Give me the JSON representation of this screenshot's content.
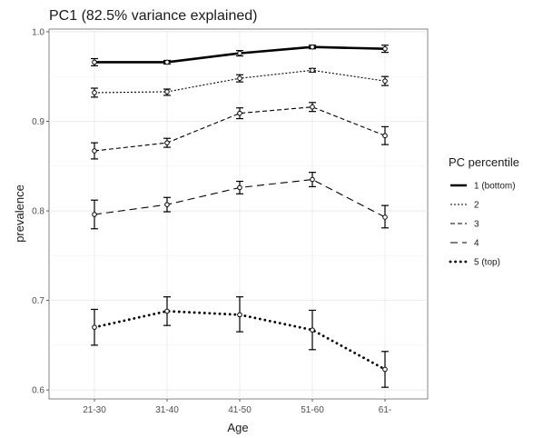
{
  "chart_data": {
    "type": "line",
    "title": "PC1 (82.5% variance explained)",
    "xlabel": "Age",
    "ylabel": "prevalence",
    "categories": [
      "21-30",
      "31-40",
      "41-50",
      "51-60",
      "61-"
    ],
    "ylim": [
      0.59,
      1.003
    ],
    "yticks": [
      0.6,
      0.7,
      0.8,
      0.9,
      1.0
    ],
    "ytick_labels": [
      "0.6",
      "0.7",
      "0.8",
      "0.9",
      "1.0"
    ],
    "grid": true,
    "legend": {
      "title": "PC percentile",
      "placement": "right"
    },
    "series": [
      {
        "name": "1 (bottom)",
        "linetype": "solid",
        "values": [
          0.966,
          0.966,
          0.976,
          0.983,
          0.981
        ],
        "lower": [
          0.962,
          0.964,
          0.973,
          0.981,
          0.977
        ],
        "upper": [
          0.97,
          0.968,
          0.979,
          0.985,
          0.985
        ]
      },
      {
        "name": "2",
        "linetype": "dotted",
        "values": [
          0.932,
          0.933,
          0.948,
          0.957,
          0.945
        ],
        "lower": [
          0.927,
          0.929,
          0.944,
          0.955,
          0.94
        ],
        "upper": [
          0.937,
          0.936,
          0.952,
          0.959,
          0.95
        ]
      },
      {
        "name": "3",
        "linetype": "dashed",
        "values": [
          0.867,
          0.876,
          0.909,
          0.916,
          0.884
        ],
        "lower": [
          0.858,
          0.871,
          0.903,
          0.911,
          0.874
        ],
        "upper": [
          0.876,
          0.881,
          0.915,
          0.921,
          0.894
        ]
      },
      {
        "name": "4",
        "linetype": "longdash",
        "values": [
          0.796,
          0.807,
          0.826,
          0.835,
          0.793
        ],
        "lower": [
          0.78,
          0.799,
          0.819,
          0.827,
          0.781
        ],
        "upper": [
          0.812,
          0.815,
          0.833,
          0.843,
          0.806
        ]
      },
      {
        "name": "5 (top)",
        "linetype": "dots",
        "values": [
          0.67,
          0.688,
          0.684,
          0.667,
          0.623
        ],
        "lower": [
          0.65,
          0.672,
          0.665,
          0.645,
          0.603
        ],
        "upper": [
          0.69,
          0.704,
          0.704,
          0.689,
          0.643
        ]
      }
    ]
  }
}
